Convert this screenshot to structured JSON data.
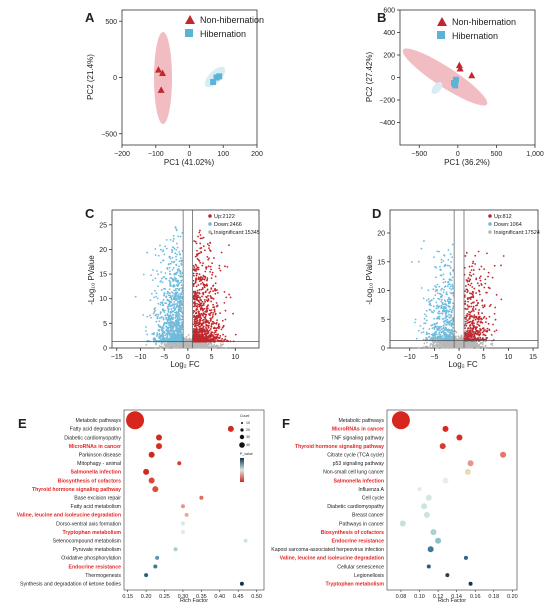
{
  "colors": {
    "non_hibernation": "#c0282e",
    "hibernation": "#5bb3d5",
    "ellipse_nh": "#f1bcc2",
    "ellipse_h": "#d7ecf5",
    "up": "#c0282e",
    "down": "#6fbbdc",
    "insig": "#b8b8b8",
    "red_term": "#e32626",
    "sig_line": "#555555"
  },
  "chart_data": [
    {
      "panel": "A",
      "type": "scatter",
      "xlabel": "PC1 (41.02%)",
      "ylabel": "PC2 (21.4%)",
      "xlim": [
        -200,
        200
      ],
      "ylim": [
        -600,
        600
      ],
      "xticks": [
        -200,
        -100,
        0,
        100,
        200
      ],
      "yticks": [
        -500,
        0,
        500
      ],
      "ytick_labels": [
        "−500",
        "0",
        "500"
      ],
      "xtick_labels": [
        "−200",
        "−100",
        "0",
        "100",
        "200"
      ],
      "legend": [
        "Non-hibernation",
        "Hibernation"
      ],
      "series": [
        {
          "name": "Non-hibernation",
          "x": [
            -92,
            -80,
            -84
          ],
          "y": [
            70,
            40,
            -110
          ]
        },
        {
          "name": "Hibernation",
          "x": [
            70,
            80,
            88
          ],
          "y": [
            -40,
            0,
            10
          ]
        }
      ]
    },
    {
      "panel": "B",
      "type": "scatter",
      "xlabel": "PC1 (36.2%)",
      "ylabel": "PC2 (27.42%)",
      "xlim": [
        -750,
        1000
      ],
      "ylim": [
        -600,
        600
      ],
      "xticks": [
        -500,
        0,
        500,
        1000
      ],
      "xtick_labels": [
        "−500",
        "0",
        "500",
        "1,000"
      ],
      "yticks": [
        -400,
        -200,
        0,
        200,
        400,
        600
      ],
      "ytick_labels": [
        "−400",
        "−200",
        "0",
        "200",
        "400",
        "600"
      ],
      "legend": [
        "Non-hibernation",
        "Hibernation"
      ],
      "series": [
        {
          "name": "Non-hibernation",
          "x": [
            20,
            30,
            180
          ],
          "y": [
            110,
            80,
            20
          ]
        },
        {
          "name": "Hibernation",
          "x": [
            -50,
            -35,
            -25
          ],
          "y": [
            -50,
            -70,
            -20
          ]
        }
      ]
    },
    {
      "panel": "C",
      "type": "scatter",
      "xlabel": "Log₂ FC",
      "ylabel": "-Log₁₀ PValue",
      "xlim": [
        -16,
        15
      ],
      "ylim": [
        0,
        28
      ],
      "xticks": [
        -15,
        -10,
        -5,
        0,
        5,
        10
      ],
      "xtick_labels": [
        "−15",
        "−10",
        "−5",
        "0",
        "5",
        "10"
      ],
      "yticks": [
        0,
        5,
        10,
        15,
        20,
        25
      ],
      "legend": [
        "Up:2122",
        "Down:2466",
        "Insignificant:15345"
      ]
    },
    {
      "panel": "D",
      "type": "scatter",
      "xlabel": "Log₂ FC",
      "ylabel": "-Log₁₀ PValue",
      "xlim": [
        -14,
        16
      ],
      "ylim": [
        0,
        24
      ],
      "xticks": [
        -10,
        -5,
        0,
        5,
        10,
        15
      ],
      "xtick_labels": [
        "−10",
        "−5",
        "0",
        "5",
        "10",
        "15"
      ],
      "yticks": [
        0,
        5,
        10,
        15,
        20
      ],
      "legend": [
        "Up:812",
        "Down:1064",
        "Insignificant:17524"
      ]
    },
    {
      "panel": "E",
      "type": "scatter",
      "xlabel": "Rich Factor",
      "xlim": [
        0.14,
        0.52
      ],
      "xticks": [
        0.15,
        0.2,
        0.25,
        0.3,
        0.35,
        0.4,
        0.45,
        0.5
      ],
      "xtick_labels": [
        "0.15",
        "0.20",
        "0.25",
        "0.30",
        "0.35",
        "0.40",
        "0.45",
        "0.50"
      ],
      "categories": [
        "Metabolic pathways",
        "Fatty acid degradation",
        "Diabetic cardiomyopathy",
        "MicroRNAs in cancer",
        "Parkinson disease",
        "Mitophagy - animal",
        "Salmonella infection",
        "Biosynthesis of cofactors",
        "Thyroid hormone signaling pathway",
        "Base excision repair",
        "Fatty acid metabolism",
        "Valine, leucine and isoleucine degradation",
        "Dorso-ventral axis formation",
        "Tryptophan metabolism",
        "Selenocompound metabolism",
        "Pyruvate metabolism",
        "Oxidative phosphorylation",
        "Endocrine resistance",
        "Thermogenesis",
        "Synthesis and degradation of ketone bodies"
      ],
      "red_terms": [
        "MicroRNAs in cancer",
        "Salmonella infection",
        "Biosynthesis of cofactors",
        "Thyroid hormone signaling pathway",
        "Valine, leucine and isoleucine degradation",
        "Tryptophan metabolism",
        "Endocrine resistance"
      ],
      "values": [
        0.17,
        0.43,
        0.235,
        0.235,
        0.215,
        0.29,
        0.2,
        0.215,
        0.225,
        0.35,
        0.3,
        0.31,
        0.3,
        0.3,
        0.47,
        0.28,
        0.23,
        0.225,
        0.2,
        0.46
      ],
      "sizes": [
        9,
        3,
        3,
        3,
        3,
        2,
        3,
        3,
        3,
        2,
        2,
        2,
        2,
        2,
        2,
        2,
        2,
        2,
        2,
        2
      ],
      "colors": [
        "#d7261e",
        "#cf2a1e",
        "#d22a20",
        "#d82b22",
        "#cc2a1f",
        "#d83a2a",
        "#cd2a20",
        "#dd4536",
        "#dd4b3b",
        "#de6b5c",
        "#e8938a",
        "#e9a7a0",
        "#d7e8e4",
        "#d9ede7",
        "#cce6e1",
        "#a5d1d1",
        "#5a97b0",
        "#3e7995",
        "#2d5f7c",
        "#14344e"
      ],
      "legend_size_title": "Count",
      "legend_size_labels": [
        "10",
        "20",
        "30",
        "40"
      ],
      "legend_color_title": "P_value"
    },
    {
      "panel": "F",
      "type": "scatter",
      "xlabel": "Rich Factor",
      "xlim": [
        0.065,
        0.205
      ],
      "xticks": [
        0.08,
        0.1,
        0.12,
        0.14,
        0.16,
        0.18,
        0.2
      ],
      "xtick_labels": [
        "0.08",
        "0.10",
        "0.12",
        "0.14",
        "0.16",
        "0.18",
        "0.20"
      ],
      "categories": [
        "Metabolic pathways",
        "MicroRNAs in cancer",
        "TNF signaling pathway",
        "Thyroid hormone signaling pathway",
        "Citrate cycle (TCA cycle)",
        "p53 signaling pathway",
        "Non-small cell lung cancer",
        "Salmonella infection",
        "Influenza A",
        "Cell cycle",
        "Diabetic cardiomyopathy",
        "Breast cancer",
        "Pathways in cancer",
        "Biosynthesis of cofactors",
        "Endocrine resistance",
        "Kaposi sarcoma-associated herpesvirus infection",
        "Valine, leucine and isoleucine degradation",
        "Cellular senescence",
        "Legionellosis",
        "Tryptophan metabolism"
      ],
      "red_terms": [
        "MicroRNAs in cancer",
        "Thyroid hormone signaling pathway",
        "Salmonella infection",
        "Biosynthesis of cofactors",
        "Endocrine resistance",
        "Valine, leucine and isoleucine degradation",
        "Tryptophan metabolism"
      ],
      "values": [
        0.08,
        0.128,
        0.143,
        0.125,
        0.19,
        0.155,
        0.152,
        0.128,
        0.1,
        0.11,
        0.105,
        0.108,
        0.082,
        0.115,
        0.12,
        0.112,
        0.15,
        0.11,
        0.13,
        0.155
      ],
      "sizes": [
        9,
        3,
        3,
        3,
        3,
        3,
        3,
        3,
        2,
        3,
        3,
        3,
        3,
        3,
        3,
        3,
        2,
        2,
        2,
        2
      ],
      "colors": [
        "#d7261e",
        "#d52a20",
        "#d82b22",
        "#d83c2d",
        "#e8746a",
        "#e8948b",
        "#ead9b9",
        "#e8efe0",
        "#dcece8",
        "#d2e8e4",
        "#cbe5e1",
        "#c9e4e0",
        "#c3e1df",
        "#a9d2d2",
        "#8dc0c8",
        "#3b7a98",
        "#2d6486",
        "#275d7e",
        "#1c4462",
        "#13334e"
      ]
    }
  ]
}
